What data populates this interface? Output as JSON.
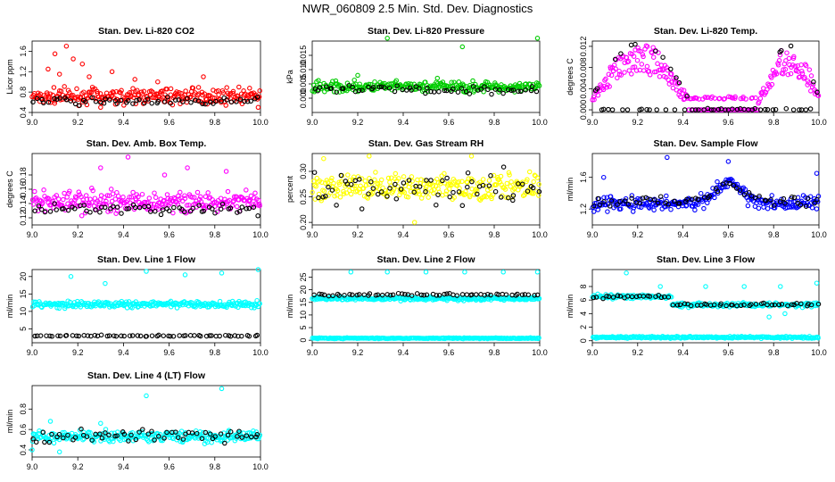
{
  "figure": {
    "title": "NWR_060809  2.5 Min. Std. Dev. Diagnostics"
  },
  "colors": {
    "black": "#000000",
    "red": "#ff0000",
    "green": "#00cc00",
    "magenta": "#ff00ff",
    "yellow": "#ffff00",
    "blue": "#0000ff",
    "cyan": "#00ffff"
  },
  "chart_data": [
    {
      "type": "scatter",
      "title": "Stan. Dev. Li-820 CO2",
      "ylabel": "Licor ppm",
      "xlim": [
        9.0,
        10.0
      ],
      "ylim": [
        0.4,
        1.8
      ],
      "xticks": [
        "9.0",
        "9.2",
        "9.4",
        "9.6",
        "9.8",
        "10.0"
      ],
      "yticks": [
        "0.4",
        "0.8",
        "1.2",
        "1.6"
      ],
      "series": [
        {
          "color": "red",
          "base": 0.72,
          "spread": 0.12,
          "outliers": [
            [
              9.1,
              1.55
            ],
            [
              9.15,
              1.7
            ],
            [
              9.18,
              1.45
            ],
            [
              9.22,
              1.35
            ],
            [
              9.07,
              1.25
            ],
            [
              9.12,
              1.15
            ],
            [
              9.25,
              1.1
            ],
            [
              9.35,
              1.2
            ],
            [
              9.45,
              1.05
            ],
            [
              9.75,
              1.1
            ],
            [
              9.55,
              1.0
            ],
            [
              9.3,
              0.5
            ],
            [
              9.99,
              0.5
            ]
          ]
        },
        {
          "color": "black",
          "base": 0.62,
          "spread": 0.06,
          "outliers": []
        }
      ]
    },
    {
      "type": "scatter",
      "title": "Stan. Dev. Li-820 Pressure",
      "ylabel": "kPa",
      "xlim": [
        9.0,
        10.0
      ],
      "ylim": [
        -0.005,
        0.02
      ],
      "xticks": [
        "9.0",
        "9.2",
        "9.4",
        "9.6",
        "9.8",
        "10.0"
      ],
      "yticks": [
        "0.000",
        "0.005",
        "0.010",
        "0.015"
      ],
      "series": [
        {
          "color": "green",
          "base": 0.004,
          "spread": 0.0015,
          "outliers": [
            [
              9.33,
              0.021
            ],
            [
              9.66,
              0.018
            ],
            [
              9.99,
              0.021
            ],
            [
              9.2,
              0.008
            ],
            [
              9.55,
              0.007
            ]
          ]
        },
        {
          "color": "black",
          "base": 0.003,
          "spread": 0.0012,
          "outliers": []
        }
      ]
    },
    {
      "type": "scatter",
      "title": "Stan. Dev. Li-820 Temp.",
      "ylabel": "degrees C",
      "xlim": [
        9.0,
        10.0
      ],
      "ylim": [
        -0.0005,
        0.013
      ],
      "xticks": [
        "9.0",
        "9.2",
        "9.4",
        "9.6",
        "9.8",
        "10.0"
      ],
      "yticks": [
        "0.000",
        "0.004",
        "0.008",
        "0.012"
      ],
      "series": [
        {
          "color": "magenta",
          "shape": "temp",
          "base": 0.0,
          "spread": 0.0006,
          "outliers": []
        },
        {
          "color": "black",
          "shape": "temp",
          "base": 0.0,
          "spread": 0.0004,
          "outliers": []
        }
      ]
    },
    {
      "type": "scatter",
      "title": "Stan. Dev. Amb. Box Temp.",
      "ylabel": "degrees C",
      "xlim": [
        9.0,
        10.0
      ],
      "ylim": [
        0.11,
        0.21
      ],
      "xticks": [
        "9.0",
        "9.2",
        "9.4",
        "9.6",
        "9.8",
        "10.0"
      ],
      "yticks": [
        "0.12",
        "0.14",
        "0.16",
        "0.18"
      ],
      "series": [
        {
          "color": "magenta",
          "base": 0.142,
          "spread": 0.012,
          "outliers": [
            [
              9.42,
              0.205
            ],
            [
              9.3,
              0.19
            ],
            [
              9.68,
              0.19
            ],
            [
              9.85,
              0.185
            ],
            [
              9.58,
              0.18
            ]
          ]
        },
        {
          "color": "black",
          "base": 0.132,
          "spread": 0.006,
          "outliers": []
        }
      ]
    },
    {
      "type": "scatter",
      "title": "Stan. Dev. Gas Stream RH",
      "ylabel": "percent",
      "xlim": [
        9.0,
        10.0
      ],
      "ylim": [
        0.195,
        0.335
      ],
      "xticks": [
        "9.0",
        "9.2",
        "9.4",
        "9.6",
        "9.8",
        "10.0"
      ],
      "yticks": [
        "0.20",
        "0.25",
        "0.30"
      ],
      "series": [
        {
          "color": "yellow",
          "base": 0.27,
          "spread": 0.022,
          "outliers": [
            [
              9.05,
              0.325
            ],
            [
              9.45,
              0.2
            ],
            [
              9.7,
              0.33
            ],
            [
              9.25,
              0.33
            ]
          ]
        },
        {
          "color": "black",
          "base": 0.27,
          "spread": 0.03,
          "outliers": []
        }
      ]
    },
    {
      "type": "scatter",
      "title": "Stan. Dev. Sample Flow",
      "ylabel": "ml/min",
      "xlim": [
        9.0,
        10.0
      ],
      "ylim": [
        1.0,
        1.9
      ],
      "xticks": [
        "9.0",
        "9.2",
        "9.4",
        "9.6",
        "9.8",
        "10.0"
      ],
      "yticks": [
        "1.2",
        "1.6"
      ],
      "series": [
        {
          "color": "blue",
          "base": 1.27,
          "spread": 0.08,
          "shape": "bump",
          "outliers": [
            [
              9.33,
              1.85
            ],
            [
              9.6,
              1.8
            ],
            [
              9.99,
              1.65
            ],
            [
              9.05,
              1.6
            ]
          ]
        },
        {
          "color": "black",
          "base": 1.3,
          "spread": 0.06,
          "shape": "bump",
          "outliers": []
        }
      ]
    },
    {
      "type": "scatter",
      "title": "Stan. Dev. Line 1 Flow",
      "ylabel": "ml/min",
      "xlim": [
        9.0,
        10.0
      ],
      "ylim": [
        1.0,
        22.0
      ],
      "xticks": [
        "9.0",
        "9.2",
        "9.4",
        "9.6",
        "9.8",
        "10.0"
      ],
      "yticks": [
        "5",
        "10",
        "15",
        "20"
      ],
      "series": [
        {
          "color": "cyan",
          "base": 12.0,
          "spread": 0.7,
          "outliers": [
            [
              9.17,
              20
            ],
            [
              9.32,
              18
            ],
            [
              9.5,
              21.5
            ],
            [
              9.67,
              20.5
            ],
            [
              9.83,
              21
            ],
            [
              9.99,
              22
            ]
          ]
        },
        {
          "color": "black",
          "base": 3.0,
          "spread": 0.15,
          "outliers": []
        }
      ]
    },
    {
      "type": "scatter",
      "title": "Stan. Dev. Line 2 Flow",
      "ylabel": "ml/min",
      "xlim": [
        9.0,
        10.0
      ],
      "ylim": [
        -1.0,
        28.0
      ],
      "xticks": [
        "9.0",
        "9.2",
        "9.4",
        "9.6",
        "9.8",
        "10.0"
      ],
      "yticks": [
        "0",
        "5",
        "10",
        "15",
        "20",
        "25"
      ],
      "series": [
        {
          "color": "cyan",
          "base": 16.5,
          "spread": 0.6,
          "outliers": [
            [
              9.17,
              27
            ],
            [
              9.33,
              27
            ],
            [
              9.5,
              27
            ],
            [
              9.67,
              27
            ],
            [
              9.84,
              27
            ],
            [
              9.99,
              27
            ]
          ]
        },
        {
          "color": "cyan",
          "base": 0.8,
          "spread": 0.15,
          "outliers": []
        },
        {
          "color": "black",
          "base": 18.0,
          "spread": 0.4,
          "outliers": []
        }
      ]
    },
    {
      "type": "scatter",
      "title": "Stan. Dev. Line 3 Flow",
      "ylabel": "ml/min",
      "xlim": [
        9.0,
        10.0
      ],
      "ylim": [
        -0.3,
        10.5
      ],
      "xticks": [
        "9.0",
        "9.2",
        "9.4",
        "9.6",
        "9.8",
        "10.0"
      ],
      "yticks": [
        "0",
        "2",
        "4",
        "6",
        "8"
      ],
      "series": [
        {
          "color": "cyan",
          "base": 5.5,
          "spread": 0.3,
          "shape": "step",
          "outliers": [
            [
              9.15,
              10
            ],
            [
              9.3,
              8
            ],
            [
              9.5,
              8
            ],
            [
              9.67,
              8
            ],
            [
              9.83,
              8
            ],
            [
              9.99,
              8.5
            ],
            [
              9.78,
              3.5
            ],
            [
              9.85,
              4
            ]
          ]
        },
        {
          "color": "cyan",
          "base": 0.5,
          "spread": 0.12,
          "outliers": []
        },
        {
          "color": "black",
          "base": 5.5,
          "spread": 0.25,
          "shape": "step",
          "outliers": []
        }
      ]
    },
    {
      "type": "scatter",
      "title": "Stan. Dev. Line 4 (LT) Flow",
      "ylabel": "ml/min",
      "xlim": [
        9.0,
        10.0
      ],
      "ylim": [
        0.33,
        1.03
      ],
      "xticks": [
        "9.0",
        "9.2",
        "9.4",
        "9.6",
        "9.8",
        "10.0"
      ],
      "yticks": [
        "0.4",
        "0.6",
        "0.8"
      ],
      "series": [
        {
          "color": "cyan",
          "base": 0.53,
          "spread": 0.045,
          "outliers": [
            [
              9.5,
              0.93
            ],
            [
              9.83,
              1.0
            ],
            [
              9.0,
              0.4
            ],
            [
              9.12,
              0.38
            ],
            [
              9.08,
              0.68
            ],
            [
              9.3,
              0.66
            ]
          ]
        },
        {
          "color": "black",
          "base": 0.54,
          "spread": 0.05,
          "outliers": []
        }
      ]
    }
  ]
}
